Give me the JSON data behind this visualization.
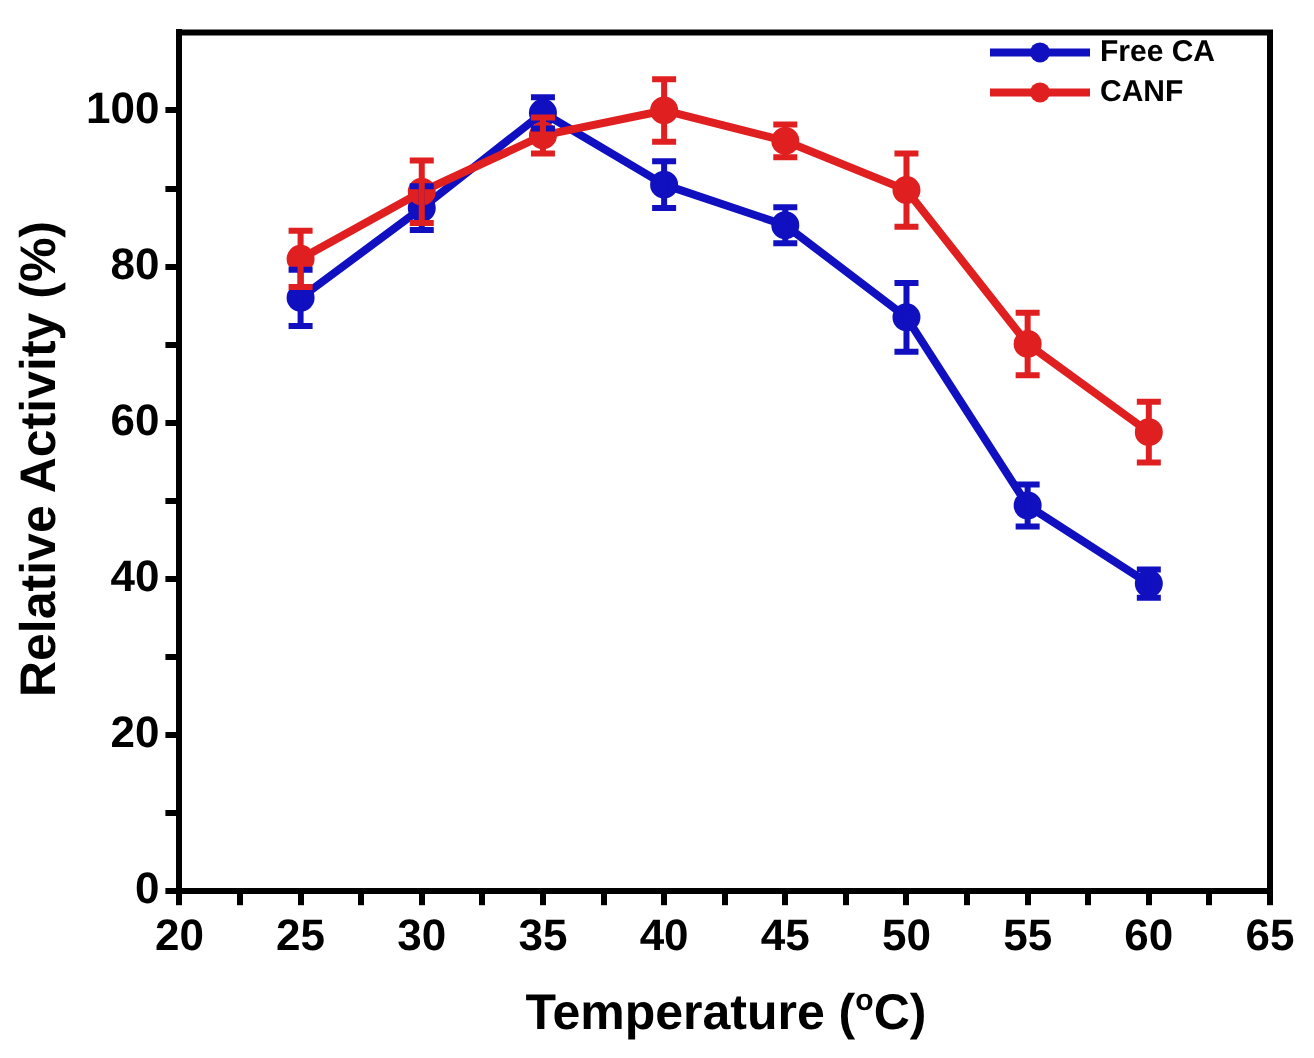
{
  "chart_data": {
    "type": "line",
    "xlabel": "Temperature ($^{o}$C)",
    "ylabel": "Relative Activity (%)",
    "x": [
      25,
      30,
      35,
      40,
      45,
      50,
      55,
      60
    ],
    "series": [
      {
        "name": "Free CA",
        "color": "#1010c0",
        "values": [
          76,
          87.5,
          99.7,
          90.5,
          85.3,
          73.5,
          49.4,
          39.4
        ],
        "errors": [
          3.6,
          2.8,
          2,
          3,
          2.3,
          4.4,
          2.7,
          1.8
        ]
      },
      {
        "name": "CANF",
        "color": "#e02020",
        "values": [
          81,
          89.6,
          96.8,
          100,
          96.1,
          89.8,
          70.1,
          58.8
        ],
        "errors": [
          3.6,
          4,
          2.3,
          4,
          2.1,
          4.7,
          4,
          3.9
        ]
      }
    ],
    "xlim": [
      20,
      65
    ],
    "xticks": [
      20,
      {
        "value": 22.5,
        "label": null
      },
      25,
      {
        "value": 27.5,
        "label": null
      },
      30,
      {
        "value": 32.5,
        "label": null
      },
      35,
      {
        "value": 37.5,
        "label": null
      },
      40,
      {
        "value": 42.5,
        "label": null
      },
      45,
      {
        "value": 47.5,
        "label": null
      },
      50,
      {
        "value": 52.5,
        "label": null
      },
      55,
      {
        "value": 57.5,
        "label": null
      },
      60,
      {
        "value": 62.5,
        "label": null
      },
      65
    ],
    "ylim": [
      0,
      110
    ],
    "yticks": [
      0,
      {
        "value": 10,
        "label": null
      },
      20,
      {
        "value": 30,
        "label": null
      },
      40,
      {
        "value": 50,
        "label": null
      },
      60,
      {
        "value": 70,
        "label": null
      },
      80,
      {
        "value": 90,
        "label": null
      },
      100
    ],
    "grid": false,
    "legend": "top right",
    "marker": "circle",
    "line_style": "solid"
  }
}
